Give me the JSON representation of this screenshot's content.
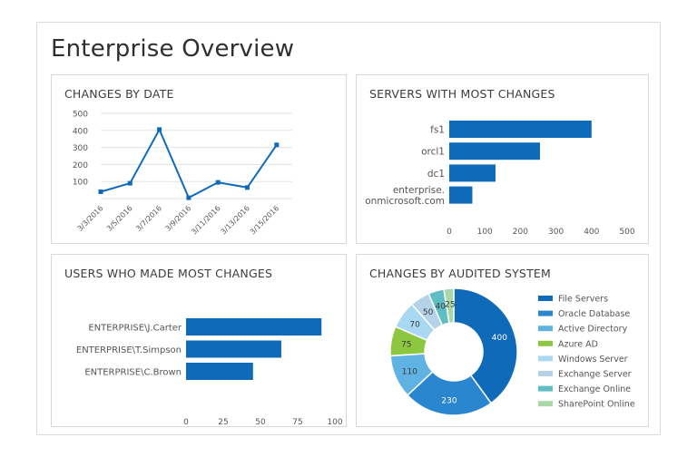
{
  "page": {
    "title": "Enterprise Overview"
  },
  "colors": {
    "primary": "#0f6bb9",
    "grid": "#e3e3e3",
    "axis": "#c8c8c8",
    "donut": [
      "#0f6bb9",
      "#2a86cf",
      "#5fb3e2",
      "#8dc63f",
      "#a9d8f2",
      "#b6d2e8",
      "#5fbec3",
      "#a8d8a8"
    ]
  },
  "chart_data": [
    {
      "id": "changes-by-date",
      "type": "line",
      "title": "CHANGES BY DATE",
      "x": [
        "3/3/2016",
        "3/5/2016",
        "3/7/2016",
        "3/9/2016",
        "3/11/2016",
        "3/13/2016",
        "3/15/2016"
      ],
      "values": [
        40,
        90,
        405,
        5,
        95,
        65,
        315
      ],
      "ylim": [
        0,
        500
      ],
      "yticks": [
        "100",
        "200",
        "300",
        "400",
        "500"
      ]
    },
    {
      "id": "servers-with-most-changes",
      "type": "bar",
      "orientation": "horizontal",
      "title": "SERVERS WITH MOST CHANGES",
      "categories": [
        [
          "fs1"
        ],
        [
          "orcl1"
        ],
        [
          "dc1"
        ],
        [
          "enterprise.",
          "onmicrosoft.com"
        ]
      ],
      "values": [
        400,
        255,
        130,
        65
      ],
      "xlim": [
        0,
        500
      ],
      "xticks": [
        "0",
        "100",
        "200",
        "300",
        "400",
        "500"
      ]
    },
    {
      "id": "users-who-made-most-changes",
      "type": "bar",
      "orientation": "horizontal",
      "title": "USERS WHO MADE MOST CHANGES",
      "categories": [
        [
          "ENTERPRISE\\J.Carter"
        ],
        [
          "ENTERPRISE\\T.Simpson"
        ],
        [
          "ENTERPRISE\\C.Brown"
        ]
      ],
      "values": [
        91,
        64,
        45
      ],
      "xlim": [
        0,
        100
      ],
      "xticks": [
        "0",
        "25",
        "50",
        "75",
        "100"
      ]
    },
    {
      "id": "changes-by-audited-system",
      "type": "pie",
      "title": "CHANGES BY AUDITED SYSTEM",
      "labels": [
        "File Servers",
        "Oracle Database",
        "Active Directory",
        "Azure AD",
        "Windows Server",
        "Exchange Server",
        "Exchange Online",
        "SharePoint Online"
      ],
      "values": [
        400,
        230,
        110,
        75,
        70,
        50,
        40,
        25
      ],
      "legend": "right"
    }
  ]
}
